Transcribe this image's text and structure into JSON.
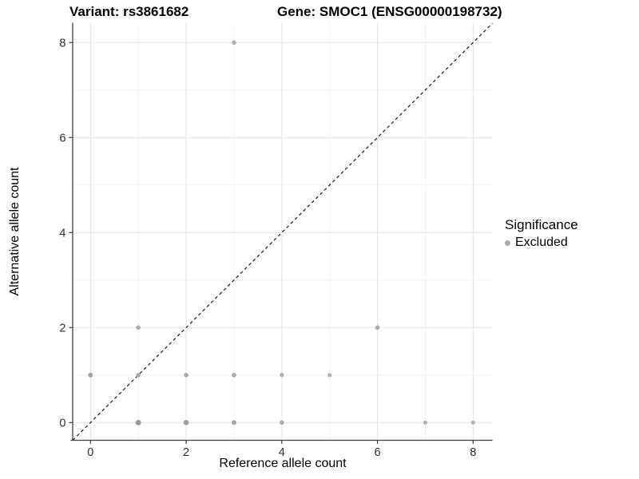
{
  "figure": {
    "background": "#ffffff"
  },
  "titles": {
    "variant": "Variant: rs3861682",
    "gene": "Gene: SMOC1 (ENSG00000198732)"
  },
  "axes": {
    "x_label": "Reference allele count",
    "y_label": "Alternative allele count"
  },
  "legend": {
    "title": "Significance",
    "items": [
      {
        "label": "Excluded",
        "color": "#a9a9a9"
      }
    ]
  },
  "colors": {
    "grid_major": "#e6e6e6",
    "grid_minor": "#f1f1f1",
    "axis_line": "#3f3f3f",
    "tick_label": "#2e2e2e",
    "identity_line": "#1a1a1a",
    "point_default": "#a9a9a9"
  },
  "chart_data": {
    "type": "scatter",
    "title": "Variant: rs3861682 — Gene: SMOC1 (ENSG00000198732)",
    "xlabel": "Reference allele count",
    "ylabel": "Alternative allele count",
    "xlim": [
      -0.4,
      8.4
    ],
    "ylim": [
      -0.4,
      8.4
    ],
    "x_ticks": [
      0,
      2,
      4,
      6,
      8
    ],
    "y_ticks": [
      0,
      2,
      4,
      6,
      8
    ],
    "x_minor_gridlines": [
      1,
      3,
      5,
      7
    ],
    "y_minor_gridlines": [
      1,
      3,
      5,
      7
    ],
    "grid": true,
    "legend_position": "right",
    "identity_line": {
      "type": "y=x",
      "style": "dashed"
    },
    "series": [
      {
        "name": "Excluded",
        "color": "#a9a9a9",
        "points": [
          {
            "x": 1,
            "y": 0,
            "r": 3.4,
            "fill": "#9b9b9b"
          },
          {
            "x": 2,
            "y": 0,
            "r": 3.3,
            "fill": "#9e9e9e"
          },
          {
            "x": 3,
            "y": 0,
            "r": 3.0,
            "fill": "#a3a3a3"
          },
          {
            "x": 4,
            "y": 0,
            "r": 2.8,
            "fill": "#aaaaaa"
          },
          {
            "x": 7,
            "y": 0,
            "r": 2.6,
            "fill": "#b3b3b3"
          },
          {
            "x": 8,
            "y": 0,
            "r": 2.6,
            "fill": "#b3b3b3"
          },
          {
            "x": 0,
            "y": 1,
            "r": 3.0,
            "fill": "#a3a3a3"
          },
          {
            "x": 1,
            "y": 1,
            "r": 2.8,
            "fill": "#a8a8a8"
          },
          {
            "x": 2,
            "y": 1,
            "r": 2.8,
            "fill": "#a8a8a8"
          },
          {
            "x": 3,
            "y": 1,
            "r": 2.8,
            "fill": "#a8a8a8"
          },
          {
            "x": 4,
            "y": 1,
            "r": 2.7,
            "fill": "#afafaf"
          },
          {
            "x": 5,
            "y": 1,
            "r": 2.6,
            "fill": "#b3b3b3"
          },
          {
            "x": 1,
            "y": 2,
            "r": 2.8,
            "fill": "#aaaaaa"
          },
          {
            "x": 6,
            "y": 2,
            "r": 2.8,
            "fill": "#adadad"
          },
          {
            "x": 3,
            "y": 8,
            "r": 2.8,
            "fill": "#adadad"
          }
        ]
      }
    ]
  }
}
